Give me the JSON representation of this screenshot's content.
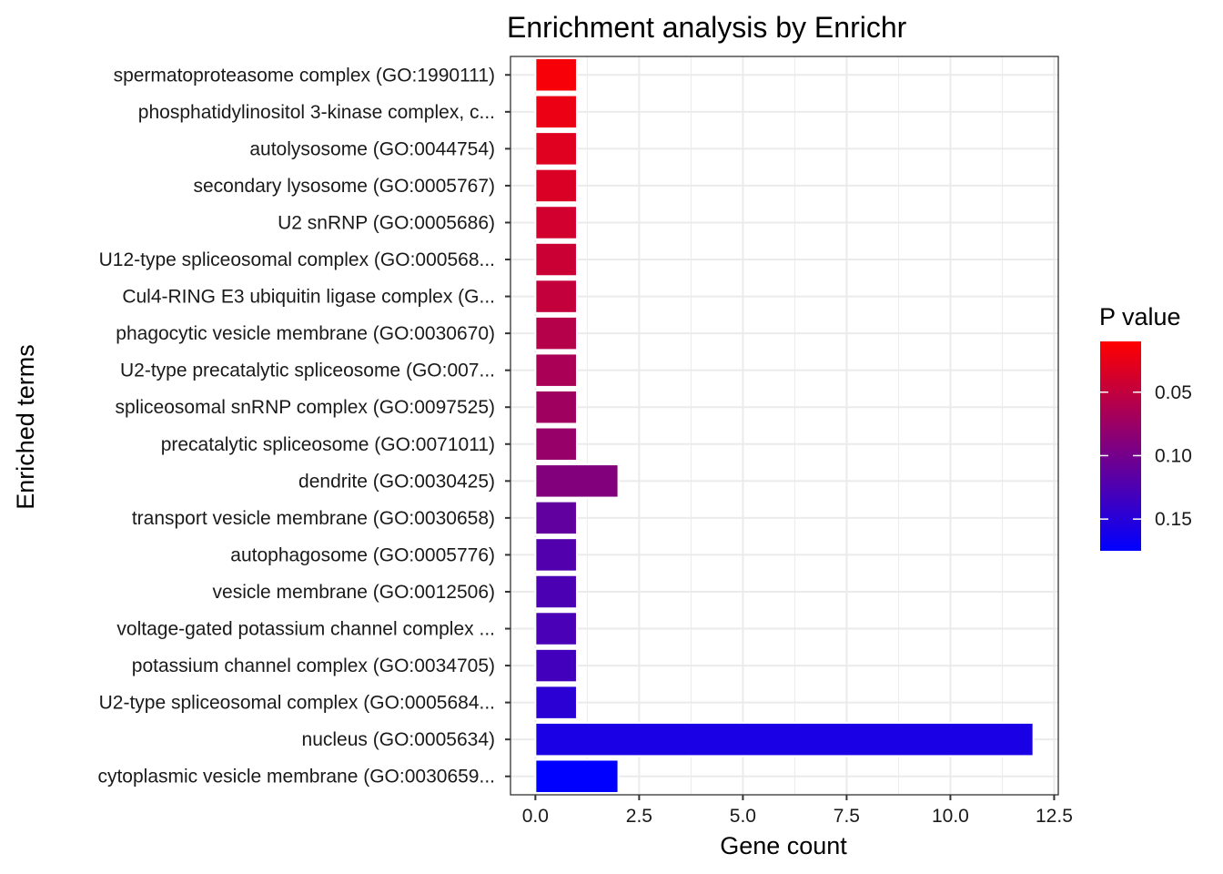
{
  "chart_data": {
    "type": "bar",
    "orientation": "horizontal",
    "title": "Enrichment analysis by Enrichr",
    "xlabel": "Gene count",
    "ylabel": "Enriched terms",
    "xlim": [
      -0.6,
      12.6
    ],
    "x_ticks": [
      0,
      2.5,
      5,
      7.5,
      10,
      12.5
    ],
    "x_tick_labels": [
      "0.0",
      "2.5",
      "5.0",
      "7.5",
      "10.0",
      "12.5"
    ],
    "grid": true,
    "categories": [
      "spermatoproteasome complex (GO:1990111)",
      "phosphatidylinositol 3-kinase complex, c...",
      "autolysosome (GO:0044754)",
      "secondary lysosome (GO:0005767)",
      "U2 snRNP (GO:0005686)",
      "U12-type spliceosomal complex (GO:000568...",
      "Cul4-RING E3 ubiquitin ligase complex (G...",
      "phagocytic vesicle membrane (GO:0030670)",
      "U2-type precatalytic spliceosome (GO:007...",
      "spliceosomal snRNP complex (GO:0097525)",
      "precatalytic spliceosome (GO:0071011)",
      "dendrite (GO:0030425)",
      "transport vesicle membrane (GO:0030658)",
      "autophagosome (GO:0005776)",
      "vesicle membrane (GO:0012506)",
      "voltage-gated potassium channel complex ...",
      "potassium channel complex (GO:0034705)",
      "U2-type spliceosomal complex (GO:0005684...",
      "nucleus (GO:0005634)",
      "cytoplasmic vesicle membrane (GO:0030659..."
    ],
    "values": [
      1,
      1,
      1,
      1,
      1,
      1,
      1,
      1,
      1,
      1,
      1,
      2,
      1,
      1,
      1,
      1,
      1,
      1,
      12,
      2
    ],
    "p_values": [
      0.015,
      0.022,
      0.03,
      0.034,
      0.04,
      0.044,
      0.049,
      0.058,
      0.065,
      0.072,
      0.077,
      0.09,
      0.112,
      0.122,
      0.126,
      0.128,
      0.132,
      0.148,
      0.158,
      0.175
    ],
    "color_legend": {
      "title": "P value",
      "range": [
        0.01,
        0.175
      ],
      "ticks": [
        0.05,
        0.1,
        0.15
      ],
      "tick_labels": [
        "0.05",
        "0.10",
        "0.15"
      ],
      "low_color": "#ff0000",
      "high_color": "#0000ff",
      "placement": "right"
    },
    "bar_outline_color": "#ffffff",
    "grid_color": "#ebebeb",
    "panel_border_color": "#333333"
  }
}
